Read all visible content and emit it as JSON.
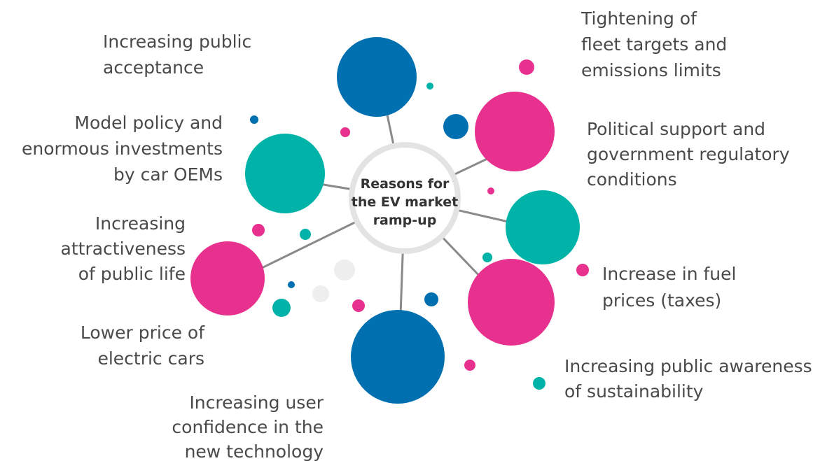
{
  "center": {
    "lines": [
      "Reasons for",
      "the EV market",
      "ramp-up"
    ]
  },
  "nodes": [
    {
      "label": [
        "Increasing public",
        "acceptance"
      ]
    },
    {
      "label": [
        "Tightening of",
        "fleet targets and",
        "emissions limits"
      ]
    },
    {
      "label": [
        "Political support and",
        "government regulatory",
        "conditions"
      ]
    },
    {
      "label": [
        "Increase in fuel",
        "prices (taxes)"
      ]
    },
    {
      "label": [
        "Increasing public awareness",
        "of sustainability"
      ]
    },
    {
      "label": [
        "Increasing user",
        "confidence in the",
        "new technology"
      ]
    },
    {
      "label": [
        "Lower price of",
        "electric cars"
      ]
    },
    {
      "label": [
        "Increasing",
        "attractiveness",
        "of public life"
      ]
    },
    {
      "label": [
        "Model policy and",
        "enormous investments",
        "by car OEMs"
      ]
    }
  ]
}
